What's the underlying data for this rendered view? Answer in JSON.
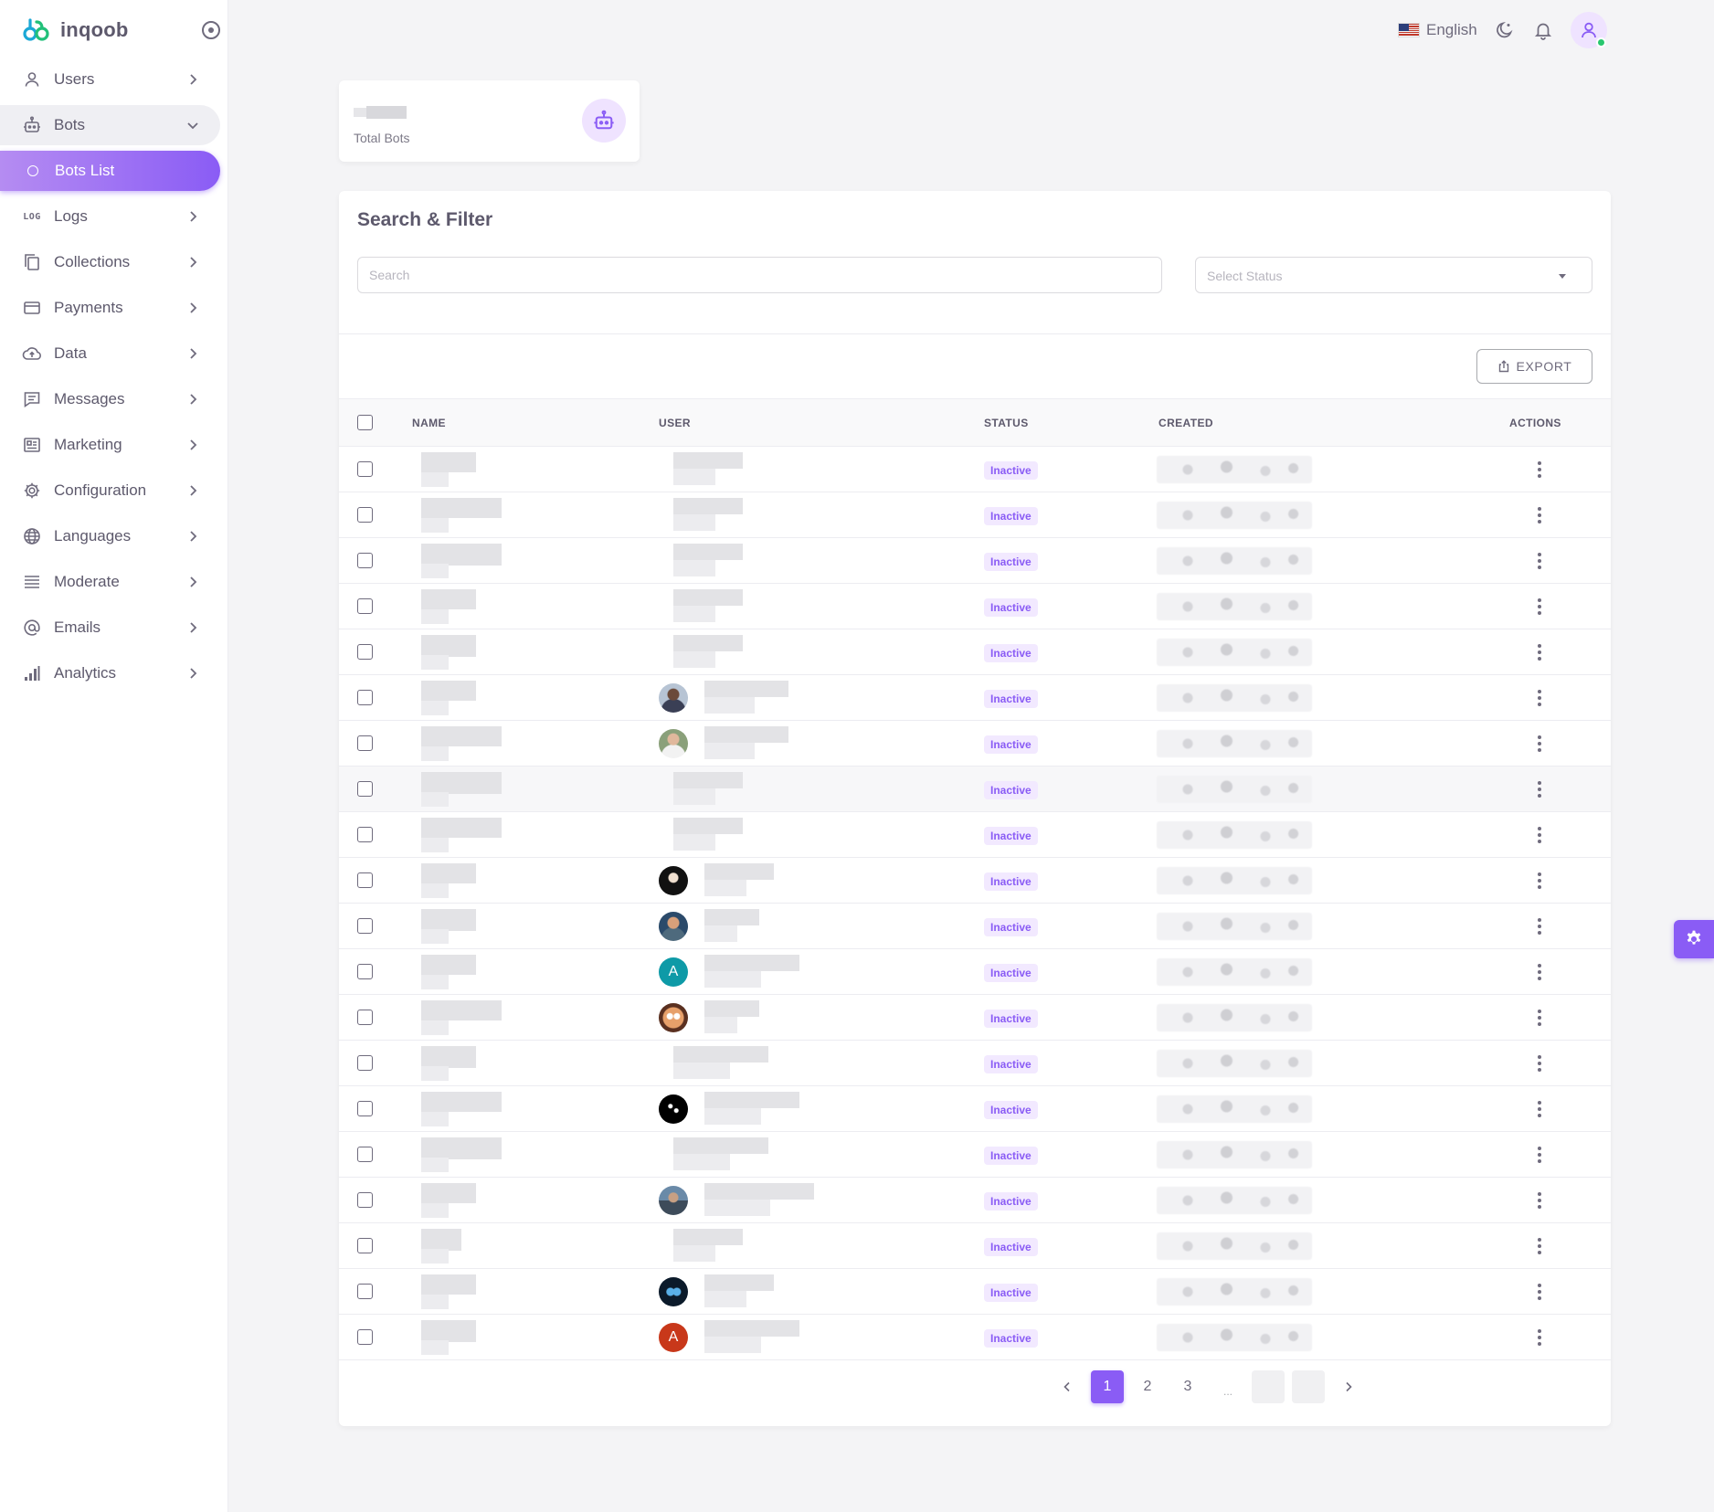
{
  "brand": {
    "name": "inqoob"
  },
  "sidebar": {
    "items": [
      {
        "label": "Users",
        "icon": "user-icon"
      },
      {
        "label": "Bots",
        "icon": "bot-icon"
      },
      {
        "label": "Bots List",
        "icon": "circle-icon"
      },
      {
        "label": "Logs",
        "icon": "log-icon",
        "icon_text": "LOG"
      },
      {
        "label": "Collections",
        "icon": "copy-icon"
      },
      {
        "label": "Payments",
        "icon": "credit-card-icon"
      },
      {
        "label": "Data",
        "icon": "cloud-upload-icon"
      },
      {
        "label": "Messages",
        "icon": "message-icon"
      },
      {
        "label": "Marketing",
        "icon": "news-icon"
      },
      {
        "label": "Configuration",
        "icon": "gear-icon"
      },
      {
        "label": "Languages",
        "icon": "globe-icon"
      },
      {
        "label": "Moderate",
        "icon": "lines-icon"
      },
      {
        "label": "Emails",
        "icon": "at-icon"
      },
      {
        "label": "Analytics",
        "icon": "bar-chart-icon"
      }
    ]
  },
  "navbar": {
    "language": "English"
  },
  "stats": {
    "total_bots_label": "Total Bots"
  },
  "filter": {
    "title": "Search & Filter",
    "search_placeholder": "Search",
    "status_placeholder": "Select Status"
  },
  "toolbar": {
    "export_label": "EXPORT"
  },
  "table": {
    "headers": {
      "name": "NAME",
      "user": "USER",
      "status": "STATUS",
      "created": "CREATED",
      "actions": "ACTIONS"
    },
    "rows": [
      {
        "status": "Inactive",
        "avatar": null
      },
      {
        "status": "Inactive",
        "avatar": null
      },
      {
        "status": "Inactive",
        "avatar": null
      },
      {
        "status": "Inactive",
        "avatar": null
      },
      {
        "status": "Inactive",
        "avatar": null
      },
      {
        "status": "Inactive",
        "avatar": "photo-1"
      },
      {
        "status": "Inactive",
        "avatar": "photo-2"
      },
      {
        "status": "Inactive",
        "avatar": null
      },
      {
        "status": "Inactive",
        "avatar": null
      },
      {
        "status": "Inactive",
        "avatar": "photo-3"
      },
      {
        "status": "Inactive",
        "avatar": "photo-4"
      },
      {
        "status": "Inactive",
        "avatar": "letter",
        "letter": "A",
        "color": "#0e9aa7"
      },
      {
        "status": "Inactive",
        "avatar": "photo-5"
      },
      {
        "status": "Inactive",
        "avatar": null
      },
      {
        "status": "Inactive",
        "avatar": "photo-6"
      },
      {
        "status": "Inactive",
        "avatar": null
      },
      {
        "status": "Inactive",
        "avatar": "photo-7"
      },
      {
        "status": "Inactive",
        "avatar": null
      },
      {
        "status": "Inactive",
        "avatar": "photo-8"
      },
      {
        "status": "Inactive",
        "avatar": "letter",
        "letter": "A",
        "color": "#c8381a"
      }
    ]
  },
  "pagination": {
    "pages": [
      "1",
      "2",
      "3"
    ],
    "ellipsis": "...",
    "current": "1"
  },
  "colors": {
    "accent": "#8a5cf5",
    "badge_bg": "#f2e9ff",
    "online": "#28c76f"
  }
}
